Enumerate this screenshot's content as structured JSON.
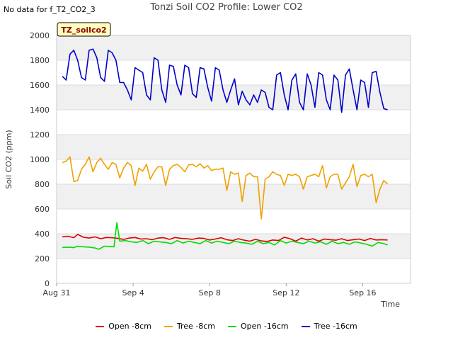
{
  "header": {
    "nodata_text": "No data for f_T2_CO2_3"
  },
  "chart_data": {
    "type": "line",
    "title": "Tonzi Soil CO2 Profile: Lower CO2",
    "xlabel": "Time",
    "ylabel": "Soil CO2 (ppm)",
    "ylim": [
      0,
      2000
    ],
    "yticks": [
      0,
      200,
      400,
      600,
      800,
      1000,
      1200,
      1400,
      1600,
      1800,
      2000
    ],
    "xlim": [
      0,
      18.5
    ],
    "xticks": [
      {
        "day": 0,
        "label": "Aug 31"
      },
      {
        "day": 4,
        "label": "Sep 4"
      },
      {
        "day": 8,
        "label": "Sep 8"
      },
      {
        "day": 12,
        "label": "Sep 12"
      },
      {
        "day": 16,
        "label": "Sep 16"
      }
    ],
    "badge": "TZ_soilco2",
    "grid": true,
    "legend_position": "bottom",
    "series": [
      {
        "name": "Open -8cm",
        "color": "#dd0000",
        "x": [
          0.3,
          0.6,
          0.9,
          1.1,
          1.4,
          1.7,
          2.0,
          2.3,
          2.6,
          2.9,
          3.2,
          3.5,
          3.8,
          4.1,
          4.4,
          4.7,
          5.0,
          5.3,
          5.6,
          5.9,
          6.2,
          6.5,
          6.8,
          7.1,
          7.4,
          7.7,
          8.0,
          8.3,
          8.6,
          8.9,
          9.2,
          9.5,
          9.8,
          10.1,
          10.4,
          10.7,
          11.0,
          11.3,
          11.6,
          11.9,
          12.2,
          12.5,
          12.8,
          13.1,
          13.4,
          13.7,
          14.0,
          14.3,
          14.6,
          14.9,
          15.2,
          15.5,
          15.8,
          16.1,
          16.4,
          16.7,
          17.0,
          17.3
        ],
        "values": [
          375,
          380,
          368,
          395,
          372,
          365,
          375,
          360,
          370,
          368,
          362,
          355,
          365,
          370,
          358,
          360,
          352,
          365,
          368,
          355,
          370,
          362,
          360,
          355,
          365,
          362,
          350,
          358,
          368,
          352,
          345,
          360,
          348,
          340,
          355,
          342,
          338,
          350,
          345,
          372,
          360,
          340,
          365,
          350,
          360,
          340,
          358,
          352,
          348,
          360,
          345,
          352,
          358,
          345,
          362,
          350,
          352,
          350
        ]
      },
      {
        "name": "Tree -8cm",
        "color": "#f0a000",
        "x": [
          0.3,
          0.5,
          0.7,
          0.9,
          1.1,
          1.3,
          1.5,
          1.7,
          1.9,
          2.1,
          2.3,
          2.5,
          2.7,
          2.9,
          3.1,
          3.3,
          3.5,
          3.7,
          3.9,
          4.1,
          4.3,
          4.5,
          4.7,
          4.9,
          5.1,
          5.3,
          5.5,
          5.7,
          5.9,
          6.1,
          6.3,
          6.5,
          6.7,
          6.9,
          7.1,
          7.3,
          7.5,
          7.7,
          7.9,
          8.1,
          8.3,
          8.5,
          8.7,
          8.9,
          9.1,
          9.3,
          9.5,
          9.7,
          9.9,
          10.1,
          10.3,
          10.5,
          10.7,
          10.9,
          11.1,
          11.3,
          11.5,
          11.7,
          11.9,
          12.1,
          12.3,
          12.5,
          12.7,
          12.9,
          13.1,
          13.3,
          13.5,
          13.7,
          13.9,
          14.1,
          14.3,
          14.5,
          14.7,
          14.9,
          15.1,
          15.3,
          15.5,
          15.7,
          15.9,
          16.1,
          16.3,
          16.5,
          16.7,
          16.9,
          17.1,
          17.3
        ],
        "values": [
          975,
          985,
          1020,
          820,
          830,
          920,
          960,
          1020,
          900,
          975,
          1010,
          960,
          920,
          975,
          960,
          850,
          930,
          975,
          950,
          790,
          930,
          905,
          960,
          840,
          900,
          940,
          940,
          790,
          920,
          950,
          960,
          935,
          900,
          955,
          960,
          940,
          965,
          930,
          950,
          910,
          920,
          920,
          930,
          750,
          900,
          880,
          890,
          660,
          870,
          890,
          860,
          860,
          520,
          840,
          860,
          900,
          880,
          870,
          790,
          880,
          870,
          880,
          860,
          760,
          860,
          870,
          880,
          860,
          950,
          770,
          860,
          880,
          880,
          760,
          810,
          860,
          960,
          780,
          870,
          880,
          860,
          880,
          650,
          760,
          830,
          800
        ]
      },
      {
        "name": "Open -16cm",
        "color": "#00dd00",
        "x": [
          0.3,
          0.6,
          0.9,
          1.1,
          1.4,
          1.7,
          2.0,
          2.2,
          2.5,
          2.8,
          3.0,
          3.15,
          3.3,
          3.6,
          3.9,
          4.2,
          4.5,
          4.8,
          5.1,
          5.4,
          5.7,
          6.0,
          6.3,
          6.6,
          6.9,
          7.2,
          7.5,
          7.8,
          8.1,
          8.4,
          8.7,
          9.0,
          9.3,
          9.6,
          9.9,
          10.2,
          10.5,
          10.8,
          11.1,
          11.4,
          11.7,
          12.0,
          12.3,
          12.6,
          12.9,
          13.2,
          13.5,
          13.8,
          14.1,
          14.4,
          14.7,
          15.0,
          15.3,
          15.6,
          15.9,
          16.2,
          16.5,
          16.8,
          17.1,
          17.3
        ],
        "values": [
          290,
          292,
          288,
          300,
          295,
          292,
          285,
          275,
          300,
          298,
          295,
          490,
          340,
          345,
          335,
          330,
          345,
          320,
          340,
          335,
          330,
          320,
          345,
          325,
          340,
          330,
          320,
          345,
          325,
          340,
          330,
          320,
          340,
          330,
          325,
          315,
          340,
          320,
          330,
          310,
          345,
          325,
          340,
          330,
          320,
          340,
          325,
          335,
          315,
          340,
          320,
          330,
          315,
          335,
          325,
          315,
          300,
          330,
          320,
          310
        ]
      },
      {
        "name": "Tree -16cm",
        "color": "#0000cc",
        "x": [
          0.3,
          0.5,
          0.7,
          0.9,
          1.1,
          1.3,
          1.5,
          1.7,
          1.9,
          2.1,
          2.3,
          2.5,
          2.7,
          2.9,
          3.1,
          3.3,
          3.5,
          3.7,
          3.9,
          4.1,
          4.3,
          4.5,
          4.7,
          4.9,
          5.1,
          5.3,
          5.5,
          5.7,
          5.9,
          6.1,
          6.3,
          6.5,
          6.7,
          6.9,
          7.1,
          7.3,
          7.5,
          7.7,
          7.9,
          8.1,
          8.3,
          8.5,
          8.7,
          8.9,
          9.1,
          9.3,
          9.5,
          9.7,
          9.9,
          10.1,
          10.3,
          10.5,
          10.7,
          10.9,
          11.1,
          11.3,
          11.5,
          11.7,
          11.9,
          12.1,
          12.3,
          12.5,
          12.7,
          12.9,
          13.1,
          13.3,
          13.5,
          13.7,
          13.9,
          14.1,
          14.3,
          14.5,
          14.7,
          14.9,
          15.1,
          15.3,
          15.5,
          15.7,
          15.9,
          16.1,
          16.3,
          16.5,
          16.7,
          16.9,
          17.1,
          17.3
        ],
        "values": [
          1670,
          1640,
          1850,
          1880,
          1800,
          1660,
          1640,
          1880,
          1890,
          1820,
          1660,
          1630,
          1880,
          1860,
          1800,
          1620,
          1620,
          1560,
          1480,
          1740,
          1720,
          1700,
          1520,
          1480,
          1820,
          1800,
          1560,
          1460,
          1760,
          1750,
          1600,
          1520,
          1760,
          1740,
          1530,
          1500,
          1740,
          1730,
          1580,
          1470,
          1740,
          1720,
          1560,
          1460,
          1560,
          1650,
          1440,
          1550,
          1480,
          1440,
          1520,
          1460,
          1560,
          1540,
          1420,
          1400,
          1680,
          1700,
          1520,
          1400,
          1640,
          1690,
          1460,
          1400,
          1690,
          1600,
          1420,
          1700,
          1680,
          1480,
          1400,
          1680,
          1640,
          1380,
          1680,
          1730,
          1560,
          1400,
          1640,
          1620,
          1420,
          1700,
          1710,
          1540,
          1410,
          1400
        ]
      }
    ]
  }
}
